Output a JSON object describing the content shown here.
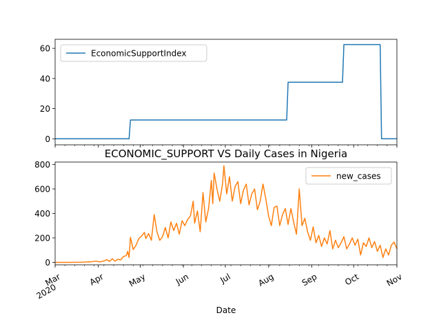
{
  "chart_data": [
    {
      "type": "line",
      "title": "",
      "xlabel": "",
      "ylabel": "",
      "ylim": [
        -4,
        66
      ],
      "yticks": [
        0,
        20,
        40,
        60
      ],
      "legend": "upper-left",
      "series": [
        {
          "name": "EconomicSupportIndex",
          "color": "#1f77b4",
          "points": [
            [
              "2020-03-01",
              0
            ],
            [
              "2020-04-23",
              0
            ],
            [
              "2020-04-24",
              12.5
            ],
            [
              "2020-08-14",
              12.5
            ],
            [
              "2020-08-15",
              37.5
            ],
            [
              "2020-09-23",
              37.5
            ],
            [
              "2020-09-24",
              62.5
            ],
            [
              "2020-10-20",
              62.5
            ],
            [
              "2020-10-21",
              0
            ],
            [
              "2020-11-01",
              0
            ]
          ]
        }
      ]
    },
    {
      "type": "line",
      "title": "ECONOMIC_SUPPORT VS Daily Cases in Nigeria",
      "xlabel": "Date",
      "ylabel": "",
      "ylim": [
        -20,
        820
      ],
      "yticks": [
        0,
        200,
        400,
        600,
        800
      ],
      "legend": "upper-right",
      "x_range": [
        "2020-03-01",
        "2020-11-01"
      ],
      "x_ticks": [
        {
          "date": "2020-03-01",
          "label": "Mar",
          "sublabel": "2020"
        },
        {
          "date": "2020-04-01",
          "label": "Apr"
        },
        {
          "date": "2020-05-01",
          "label": "May"
        },
        {
          "date": "2020-06-01",
          "label": "Jun"
        },
        {
          "date": "2020-07-01",
          "label": "Jul"
        },
        {
          "date": "2020-08-01",
          "label": "Aug"
        },
        {
          "date": "2020-09-01",
          "label": "Sep"
        },
        {
          "date": "2020-10-01",
          "label": "Oct"
        },
        {
          "date": "2020-11-01",
          "label": "Nov"
        }
      ],
      "series": [
        {
          "name": "new_cases",
          "color": "#ff7f0e",
          "points": [
            [
              "2020-03-01",
              0
            ],
            [
              "2020-03-10",
              0
            ],
            [
              "2020-03-20",
              1
            ],
            [
              "2020-03-27",
              5
            ],
            [
              "2020-03-30",
              10
            ],
            [
              "2020-04-02",
              4
            ],
            [
              "2020-04-05",
              12
            ],
            [
              "2020-04-07",
              22
            ],
            [
              "2020-04-09",
              8
            ],
            [
              "2020-04-11",
              30
            ],
            [
              "2020-04-13",
              10
            ],
            [
              "2020-04-15",
              25
            ],
            [
              "2020-04-17",
              20
            ],
            [
              "2020-04-19",
              48
            ],
            [
              "2020-04-21",
              55
            ],
            [
              "2020-04-22",
              90
            ],
            [
              "2020-04-23",
              40
            ],
            [
              "2020-04-24",
              205
            ],
            [
              "2020-04-26",
              105
            ],
            [
              "2020-04-28",
              140
            ],
            [
              "2020-04-30",
              195
            ],
            [
              "2020-05-02",
              215
            ],
            [
              "2020-05-04",
              245
            ],
            [
              "2020-05-05",
              195
            ],
            [
              "2020-05-07",
              235
            ],
            [
              "2020-05-09",
              180
            ],
            [
              "2020-05-11",
              390
            ],
            [
              "2020-05-13",
              250
            ],
            [
              "2020-05-15",
              180
            ],
            [
              "2020-05-17",
              210
            ],
            [
              "2020-05-19",
              285
            ],
            [
              "2020-05-21",
              200
            ],
            [
              "2020-05-23",
              330
            ],
            [
              "2020-05-25",
              260
            ],
            [
              "2020-05-27",
              320
            ],
            [
              "2020-05-29",
              230
            ],
            [
              "2020-05-31",
              340
            ],
            [
              "2020-06-02",
              300
            ],
            [
              "2020-06-04",
              350
            ],
            [
              "2020-06-06",
              380
            ],
            [
              "2020-06-08",
              500
            ],
            [
              "2020-06-09",
              320
            ],
            [
              "2020-06-11",
              420
            ],
            [
              "2020-06-13",
              250
            ],
            [
              "2020-06-15",
              570
            ],
            [
              "2020-06-17",
              330
            ],
            [
              "2020-06-19",
              440
            ],
            [
              "2020-06-21",
              670
            ],
            [
              "2020-06-22",
              480
            ],
            [
              "2020-06-23",
              730
            ],
            [
              "2020-06-25",
              600
            ],
            [
              "2020-06-27",
              500
            ],
            [
              "2020-06-29",
              640
            ],
            [
              "2020-06-30",
              790
            ],
            [
              "2020-07-02",
              560
            ],
            [
              "2020-07-04",
              700
            ],
            [
              "2020-07-06",
              500
            ],
            [
              "2020-07-08",
              620
            ],
            [
              "2020-07-10",
              660
            ],
            [
              "2020-07-12",
              480
            ],
            [
              "2020-07-14",
              590
            ],
            [
              "2020-07-16",
              640
            ],
            [
              "2020-07-18",
              470
            ],
            [
              "2020-07-20",
              560
            ],
            [
              "2020-07-22",
              600
            ],
            [
              "2020-07-24",
              430
            ],
            [
              "2020-07-26",
              500
            ],
            [
              "2020-07-28",
              640
            ],
            [
              "2020-07-30",
              520
            ],
            [
              "2020-08-01",
              380
            ],
            [
              "2020-08-03",
              300
            ],
            [
              "2020-08-05",
              450
            ],
            [
              "2020-08-07",
              460
            ],
            [
              "2020-08-09",
              300
            ],
            [
              "2020-08-11",
              390
            ],
            [
              "2020-08-13",
              440
            ],
            [
              "2020-08-15",
              310
            ],
            [
              "2020-08-17",
              440
            ],
            [
              "2020-08-19",
              330
            ],
            [
              "2020-08-21",
              230
            ],
            [
              "2020-08-23",
              600
            ],
            [
              "2020-08-25",
              300
            ],
            [
              "2020-08-27",
              360
            ],
            [
              "2020-08-29",
              250
            ],
            [
              "2020-08-31",
              180
            ],
            [
              "2020-09-02",
              290
            ],
            [
              "2020-09-04",
              160
            ],
            [
              "2020-09-06",
              220
            ],
            [
              "2020-09-08",
              130
            ],
            [
              "2020-09-10",
              200
            ],
            [
              "2020-09-12",
              150
            ],
            [
              "2020-09-14",
              260
            ],
            [
              "2020-09-16",
              110
            ],
            [
              "2020-09-18",
              180
            ],
            [
              "2020-09-20",
              120
            ],
            [
              "2020-09-22",
              160
            ],
            [
              "2020-09-24",
              210
            ],
            [
              "2020-09-26",
              110
            ],
            [
              "2020-09-28",
              150
            ],
            [
              "2020-09-30",
              200
            ],
            [
              "2020-10-02",
              140
            ],
            [
              "2020-10-04",
              190
            ],
            [
              "2020-10-06",
              60
            ],
            [
              "2020-10-08",
              160
            ],
            [
              "2020-10-10",
              130
            ],
            [
              "2020-10-12",
              200
            ],
            [
              "2020-10-14",
              120
            ],
            [
              "2020-10-16",
              170
            ],
            [
              "2020-10-18",
              90
            ],
            [
              "2020-10-20",
              140
            ],
            [
              "2020-10-22",
              40
            ],
            [
              "2020-10-24",
              110
            ],
            [
              "2020-10-26",
              60
            ],
            [
              "2020-10-28",
              140
            ],
            [
              "2020-10-30",
              165
            ],
            [
              "2020-11-01",
              110
            ]
          ]
        }
      ]
    }
  ]
}
